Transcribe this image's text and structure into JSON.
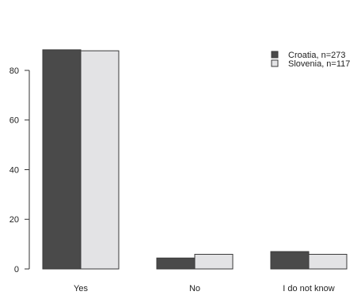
{
  "chart_data": {
    "type": "bar",
    "categories": [
      "Yes",
      "No",
      "I do not know"
    ],
    "series": [
      {
        "name": "Croatia, n=273",
        "values": [
          88.3,
          4.4,
          7.0
        ]
      },
      {
        "name": "Slovenia, n=117",
        "values": [
          87.9,
          5.9,
          5.9
        ]
      }
    ],
    "title": "",
    "xlabel": "",
    "ylabel": "",
    "ylim": [
      0,
      88.6
    ],
    "yticks": [
      0,
      20,
      40,
      60,
      80
    ],
    "grid": false,
    "legend_position": "top-right",
    "colors": {
      "Croatia, n=273": "#4a4a4a",
      "Slovenia, n=117": "#e3e3e5",
      "axis": "#333333",
      "text": "#222222",
      "bar_stroke": "#3a3a3a"
    }
  }
}
